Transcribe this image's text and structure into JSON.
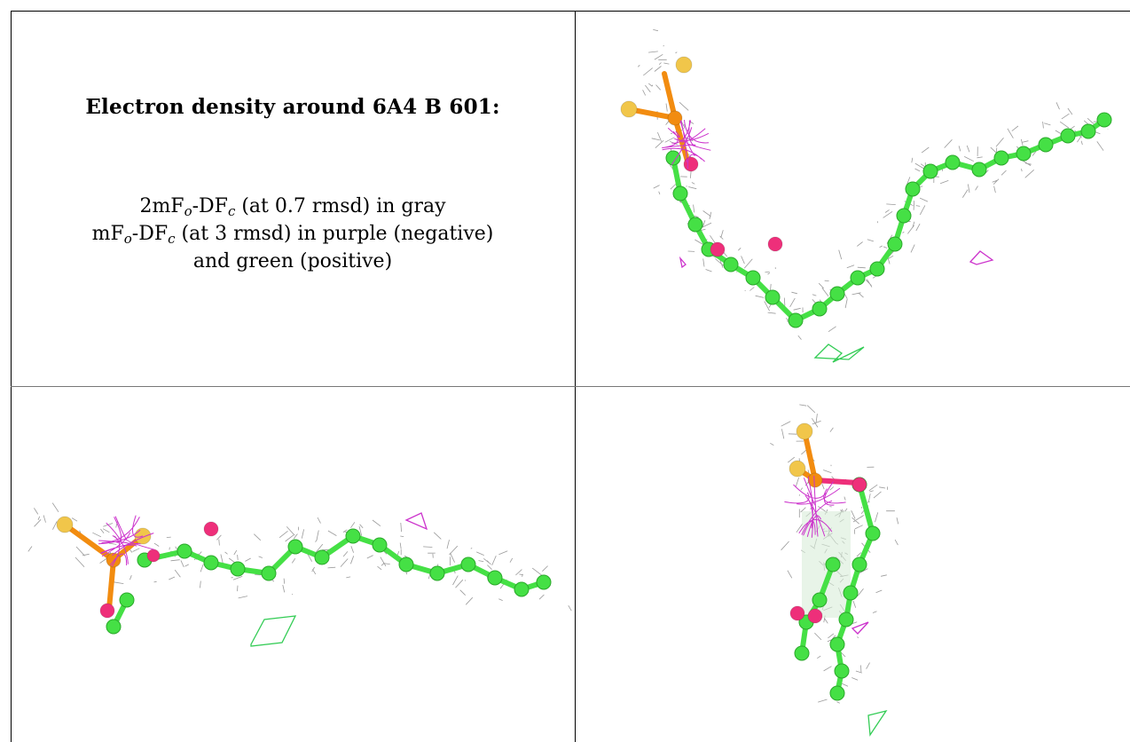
{
  "title": "Electron density around 6A4 B 601:",
  "legend": {
    "line1": {
      "a": "2mF",
      "b": "o",
      "c": "-DF",
      "d": "c",
      "e": " (at 0.7 rmsd) in gray"
    },
    "line2": {
      "a": "mF",
      "b": "o",
      "c": "-DF",
      "d": "c",
      "e": " (at 3 rmsd) in purple (negative)"
    },
    "line3": "and green (positive)"
  },
  "colors": {
    "mesh": "#9a9a9a",
    "carbon": "#45e045",
    "oxygen": "#ee2f7a",
    "phosphorus": "#f28c10",
    "sulfur": "#f1c64a",
    "negative_density": "#cc33cc",
    "positive_density": "#33cc55"
  },
  "panels": [
    {
      "name": "view-top-right"
    },
    {
      "name": "view-bottom-left"
    },
    {
      "name": "view-bottom-right"
    }
  ]
}
